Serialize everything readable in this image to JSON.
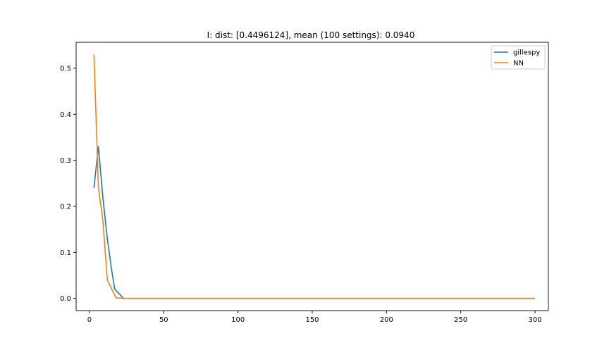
{
  "chart_data": {
    "type": "line",
    "title": "I: dist: [0.4496124], mean (100 settings): 0.0940",
    "xlabel": "",
    "ylabel": "",
    "xlim": [
      -9,
      309
    ],
    "ylim": [
      -0.0265,
      0.5565
    ],
    "xticks": [
      0,
      50,
      100,
      150,
      200,
      250,
      300
    ],
    "xtick_labels": [
      "0",
      "50",
      "100",
      "150",
      "200",
      "250",
      "300"
    ],
    "yticks": [
      0.0,
      0.1,
      0.2,
      0.3,
      0.4,
      0.5
    ],
    "ytick_labels": [
      "0.0",
      "0.1",
      "0.2",
      "0.3",
      "0.4",
      "0.5"
    ],
    "grid": false,
    "legend_position": "top-right",
    "series": [
      {
        "name": "gillespy",
        "color": "#1f77b4",
        "points": [
          [
            3,
            0.24
          ],
          [
            6,
            0.33
          ],
          [
            9,
            0.22
          ],
          [
            12,
            0.13
          ],
          [
            15,
            0.06
          ],
          [
            17,
            0.02
          ],
          [
            20,
            0.01
          ],
          [
            23,
            0.0
          ],
          [
            26,
            0.0
          ],
          [
            30,
            0.0
          ],
          [
            300,
            0.0
          ]
        ]
      },
      {
        "name": "NN",
        "color": "#ff7f0e",
        "points": [
          [
            3,
            0.53
          ],
          [
            6,
            0.24
          ],
          [
            9,
            0.17
          ],
          [
            12,
            0.04
          ],
          [
            15,
            0.02
          ],
          [
            18,
            0.001
          ],
          [
            24,
            0.0
          ],
          [
            30,
            0.0
          ],
          [
            300,
            0.0
          ]
        ]
      }
    ]
  }
}
